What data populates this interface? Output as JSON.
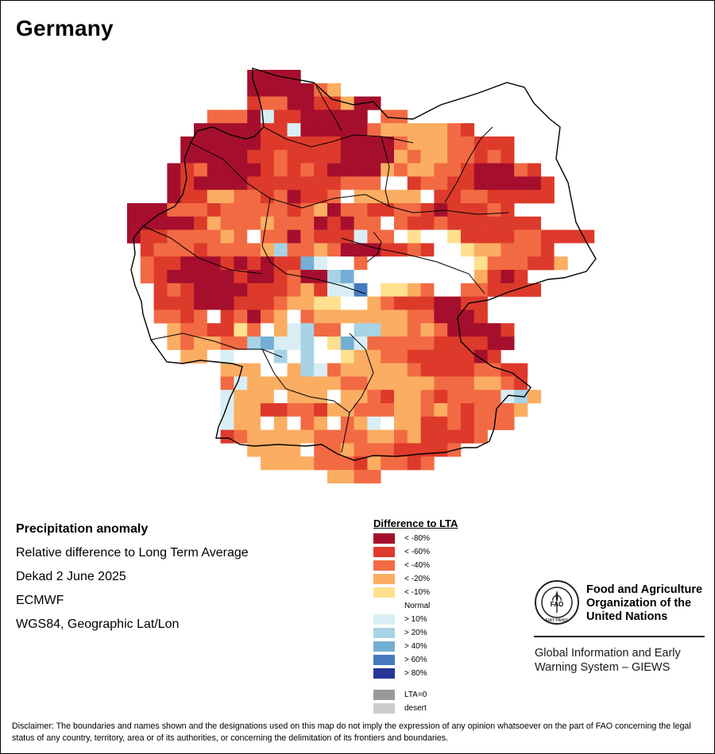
{
  "title": "Germany",
  "map": {
    "region": "Germany",
    "variable": "Precipitation anomaly",
    "category_colors": {
      "lt_minus80": "#a50f2d",
      "lt_minus60": "#dd3a2b",
      "lt_minus40": "#f26a43",
      "lt_minus20": "#fbad62",
      "lt_minus10": "#fee08f",
      "normal": "#ffffff",
      "gt_10": "#d9eef4",
      "gt_20": "#a7d3e5",
      "gt_40": "#74aed5",
      "gt_60": "#4679c0",
      "gt_80": "#283594",
      "lta0": "#999999",
      "desert": "#cccccc"
    }
  },
  "info": {
    "heading": "Precipitation anomaly",
    "line1": "Relative difference to Long Term Average",
    "line2": "Dekad 2 June 2025",
    "line3": "ECMWF",
    "line4": "WGS84, Geographic Lat/Lon"
  },
  "legend": {
    "title": "Difference to LTA",
    "items": [
      {
        "label": "< -80%",
        "color": "#a50f2d"
      },
      {
        "label": "< -60%",
        "color": "#dd3a2b"
      },
      {
        "label": "< -40%",
        "color": "#f26a43"
      },
      {
        "label": "< -20%",
        "color": "#fbad62"
      },
      {
        "label": "< -10%",
        "color": "#fee08f"
      },
      {
        "label": "Normal",
        "color": "#ffffff"
      },
      {
        "label": "> 10%",
        "color": "#d9eef4"
      },
      {
        "label": "> 20%",
        "color": "#a7d3e5"
      },
      {
        "label": "> 40%",
        "color": "#74aed5"
      },
      {
        "label": "> 60%",
        "color": "#4679c0"
      },
      {
        "label": "> 80%",
        "color": "#283594"
      },
      {
        "label": "LTA=0",
        "color": "#999999"
      },
      {
        "label": "desert",
        "color": "#cccccc"
      }
    ]
  },
  "fao": {
    "logo_icon": "fao-emblem-icon",
    "name_line1": "Food and Agriculture",
    "name_line2": "Organization of the",
    "name_line3": "United Nations",
    "system_line1": "Global Information and Early",
    "system_line2": "Warning System – GIEWS",
    "logo_letters": "FAO",
    "logo_motto": "FIAT PANIS"
  },
  "disclaimer": "Disclaimer: The boundaries and names shown and the designations used on this map do not imply the expression of any opinion whatsoever on the part of FAO concerning the legal status of any country, territory, area or of its authorities, or concerning the delimitation of its frontiers and boundaries."
}
